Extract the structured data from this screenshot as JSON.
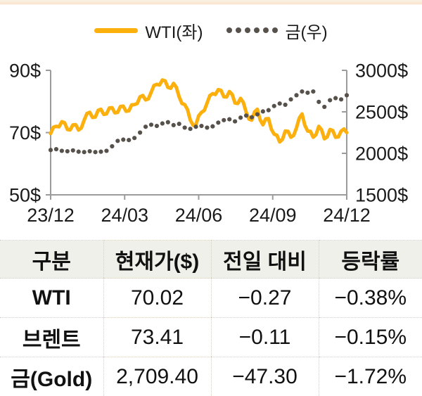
{
  "legend": {
    "wti_label": "WTI(좌)",
    "gold_label": "금(우)"
  },
  "colors": {
    "wti_line": "#FBB00D",
    "gold_dots": "#57514B",
    "axis": "#9B9B9B",
    "tick_text": "#1a1a1a",
    "table_header_bg": "#F0F0EB",
    "table_border": "#D5CFC0"
  },
  "chart_data": {
    "type": "line",
    "title": "",
    "grid": false,
    "legend_position": "top-center",
    "x_ticks": [
      "23/12",
      "24/03",
      "24/06",
      "24/09",
      "24/12"
    ],
    "left_axis": {
      "min": 50,
      "max": 90,
      "tick_values": [
        90,
        70,
        50
      ],
      "tick_labels": [
        "90$",
        "70$",
        "50$"
      ]
    },
    "right_axis": {
      "min": 1500,
      "max": 3000,
      "tick_values": [
        3000,
        2500,
        2000,
        1500
      ],
      "tick_labels": [
        "3000$",
        "2500$",
        "2000$",
        "1500$"
      ]
    },
    "series": [
      {
        "name": "WTI(좌)",
        "axis": "left",
        "style": "solid",
        "color": "#FBB00D",
        "values": [
          69.7,
          72.0,
          73.5,
          71.0,
          72.5,
          70.8,
          74.0,
          76.5,
          75.0,
          77.5,
          76.0,
          78.0,
          76.5,
          78.5,
          77.0,
          79.0,
          81.5,
          80.5,
          83.0,
          85.5,
          86.9,
          84.5,
          85.8,
          81.5,
          79.0,
          74.0,
          72.5,
          76.5,
          79.5,
          82.5,
          83.8,
          81.5,
          83.2,
          79.5,
          81.0,
          76.5,
          74.0,
          77.5,
          72.5,
          74.5,
          69.5,
          67.0,
          70.5,
          68.5,
          71.5,
          76.0,
          70.5,
          68.5,
          72.0,
          68.0,
          71.0,
          68.5,
          70.5,
          70.0
        ]
      },
      {
        "name": "금(우)",
        "axis": "right",
        "style": "dotted",
        "color": "#57514B",
        "values": [
          2040,
          2050,
          2030,
          2025,
          2035,
          2020,
          2015,
          2025,
          2015,
          2020,
          2030,
          2085,
          2150,
          2165,
          2160,
          2185,
          2250,
          2320,
          2345,
          2330,
          2360,
          2375,
          2340,
          2355,
          2310,
          2295,
          2320,
          2330,
          2310,
          2325,
          2370,
          2400,
          2410,
          2385,
          2430,
          2455,
          2435,
          2470,
          2505,
          2520,
          2570,
          2600,
          2585,
          2650,
          2700,
          2745,
          2730,
          2745,
          2620,
          2560,
          2640,
          2665,
          2650,
          2700
        ]
      }
    ]
  },
  "table": {
    "headers": [
      "구분",
      "현재가($)",
      "전일 대비",
      "등락률"
    ],
    "rows": [
      {
        "name": "WTI",
        "price": "70.02",
        "change": "−0.27",
        "pct": "−0.38%"
      },
      {
        "name": "브렌트",
        "price": "73.41",
        "change": "−0.11",
        "pct": "−0.15%"
      },
      {
        "name": "금(Gold)",
        "price": "2,709.40",
        "change": "−47.30",
        "pct": "−1.72%"
      }
    ]
  }
}
